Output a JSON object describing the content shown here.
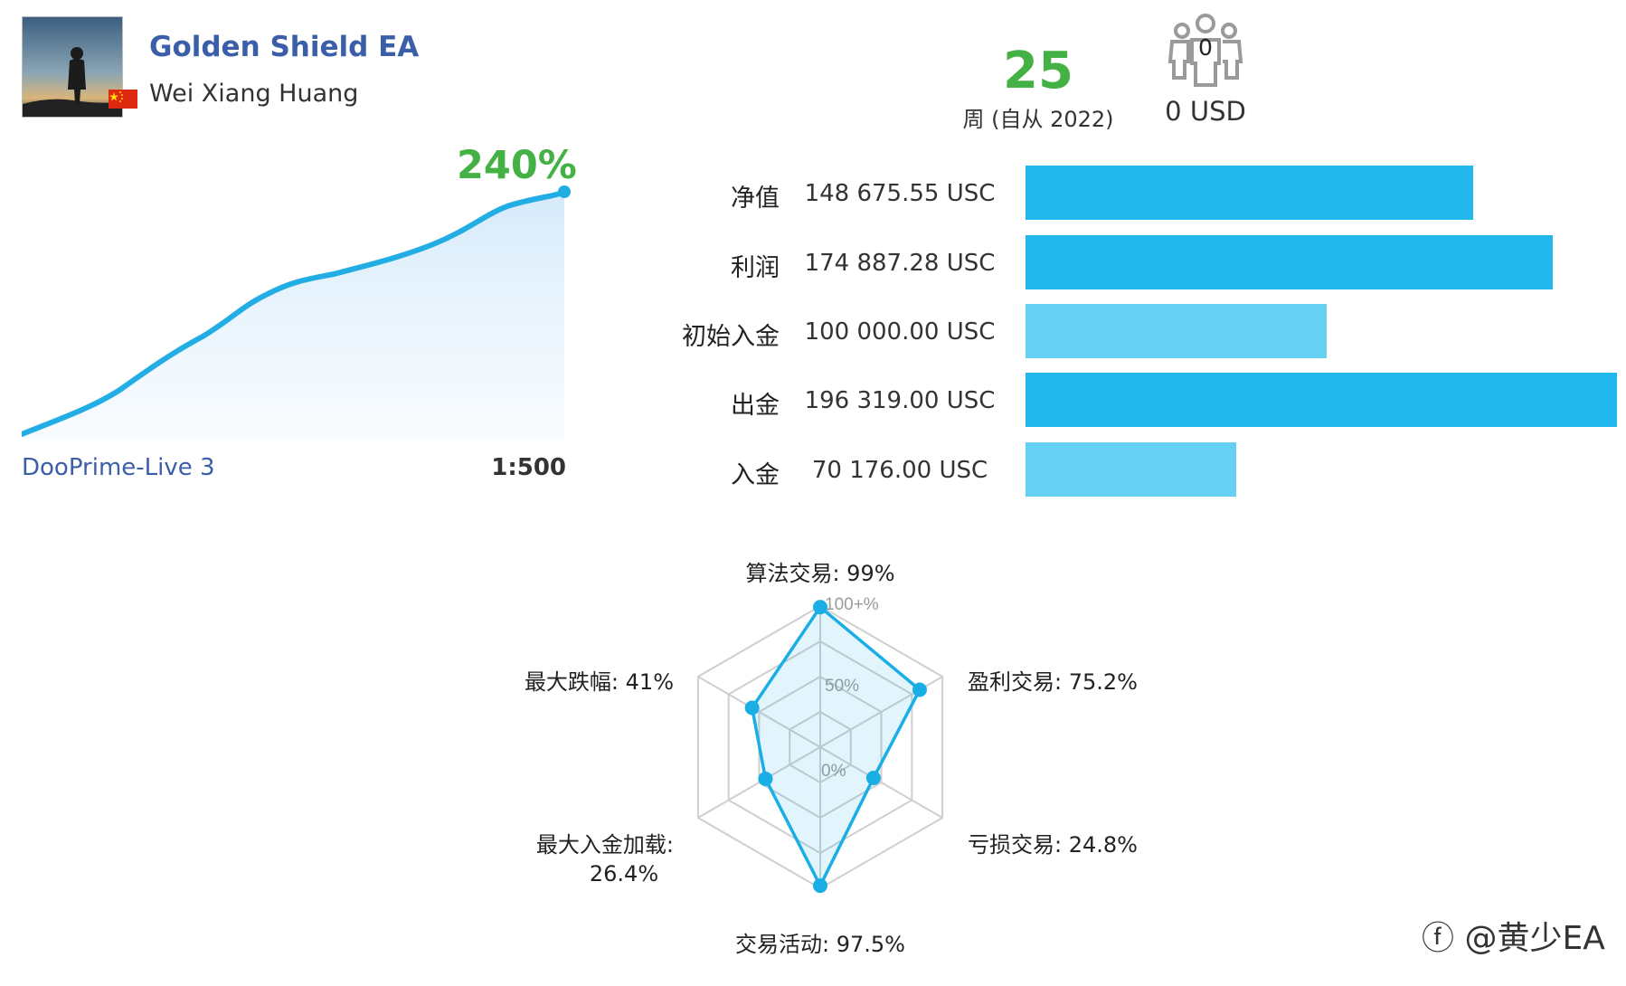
{
  "header": {
    "title": "Golden Shield EA",
    "author": "Wei Xiang Huang"
  },
  "summary": {
    "weeks_value": "25",
    "weeks_label": "周 (自从 2022)",
    "subscribers_count": "0",
    "subscribers_usd": "0 USD"
  },
  "growth": {
    "value": "240%",
    "server": "DooPrime-Live 3",
    "leverage": "1:500",
    "accent_color": "#22aee4"
  },
  "stats": [
    {
      "label": "净值",
      "value": "148 675.55 USC",
      "fraction": 0.757,
      "color": "#22b8ee"
    },
    {
      "label": "利润",
      "value": "174 887.28 USC",
      "fraction": 0.891,
      "color": "#22b8ee"
    },
    {
      "label": "初始入金",
      "value": "100 000.00 USC",
      "fraction": 0.509,
      "color": "#66cff4"
    },
    {
      "label": "出金",
      "value": "196 319.00 USC",
      "fraction": 1.0,
      "color": "#22b8ee"
    },
    {
      "label": "入金",
      "value": "70 176.00 USC",
      "fraction": 0.357,
      "color": "#66cff4"
    }
  ],
  "radar": {
    "grid_labels": [
      "100+%",
      "50%",
      "0%"
    ],
    "axes": [
      {
        "label": "算法交易: 99%",
        "value": 99
      },
      {
        "label": "盈利交易: 75.2%",
        "value": 75.2
      },
      {
        "label": "亏损交易: 24.8%",
        "value": 24.8
      },
      {
        "label": "交易活动: 97.5%",
        "value": 97.5
      },
      {
        "label_lines": [
          "最大入金加载:",
          "26.4%"
        ],
        "value": 26.4
      },
      {
        "label": "最大跌幅: 41%",
        "value": 41
      }
    ],
    "color": "#1aaee6"
  },
  "watermark": "@黄少EA"
}
